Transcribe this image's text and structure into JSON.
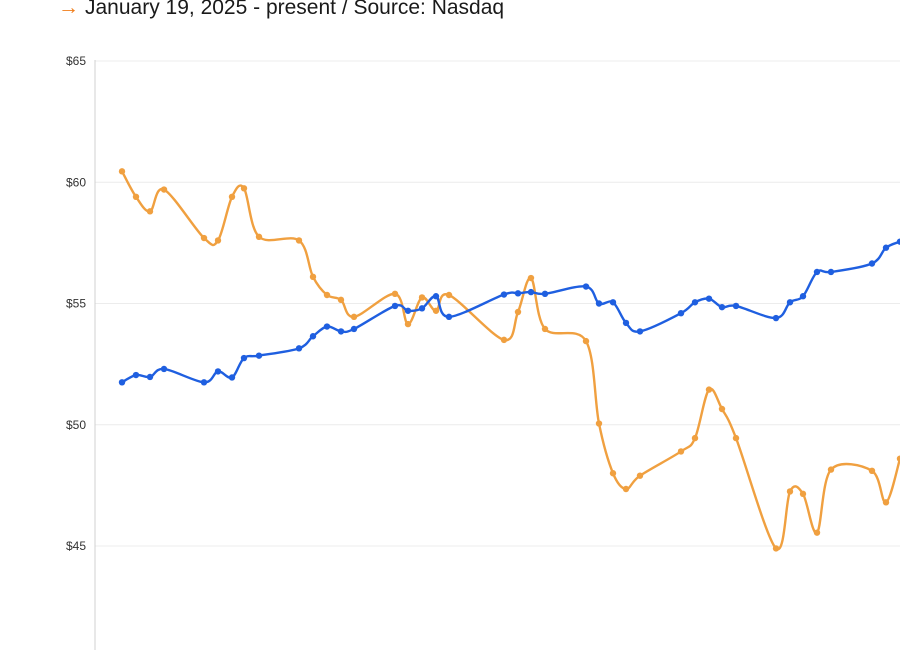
{
  "header": {
    "arrow": "→",
    "subtitle": "January 19, 2025 - present / Source: Nasdaq"
  },
  "chart_data": {
    "type": "line",
    "title": "",
    "xlabel": "",
    "ylabel": "",
    "ylim": [
      40.5,
      65
    ],
    "yticks": [
      45,
      50,
      55,
      60,
      65
    ],
    "ytick_labels": [
      "$45",
      "$50",
      "$55",
      "$60",
      "$65"
    ],
    "grid": true,
    "series": [
      {
        "color": "#1f5fe0",
        "x": [
          122,
          136,
          150,
          164,
          204,
          218,
          232,
          244,
          259,
          299,
          313,
          327,
          341,
          354,
          395,
          408,
          422,
          436,
          449,
          504,
          518,
          531,
          545,
          586,
          599,
          613,
          626,
          640,
          681,
          695,
          709,
          722,
          736,
          776,
          790,
          803,
          817,
          831,
          872,
          886,
          900
        ],
        "values": [
          51.75,
          52.05,
          51.97,
          52.3,
          51.75,
          52.2,
          51.95,
          52.75,
          52.85,
          53.15,
          53.65,
          54.05,
          53.85,
          53.95,
          54.9,
          54.7,
          54.8,
          55.3,
          54.45,
          55.37,
          55.42,
          55.47,
          55.4,
          55.7,
          55.0,
          55.05,
          54.2,
          53.85,
          54.6,
          55.05,
          55.2,
          54.85,
          54.9,
          54.4,
          55.05,
          55.3,
          56.3,
          56.3,
          56.65,
          57.3,
          57.55
        ]
      },
      {
        "color": "#f0a040",
        "x": [
          122,
          136,
          150,
          164,
          204,
          218,
          232,
          244,
          259,
          299,
          313,
          327,
          341,
          354,
          395,
          408,
          422,
          436,
          449,
          504,
          518,
          531,
          545,
          586,
          599,
          613,
          626,
          640,
          681,
          695,
          709,
          722,
          736,
          776,
          790,
          803,
          817,
          831,
          872,
          886,
          900
        ],
        "values": [
          60.45,
          59.4,
          58.8,
          59.7,
          57.7,
          57.6,
          59.4,
          59.75,
          57.75,
          57.6,
          56.1,
          55.35,
          55.15,
          54.45,
          55.4,
          54.15,
          55.25,
          54.7,
          55.35,
          53.5,
          54.65,
          56.05,
          53.95,
          53.45,
          50.05,
          48.0,
          47.35,
          47.9,
          48.9,
          49.45,
          51.45,
          50.65,
          49.45,
          44.9,
          47.25,
          47.15,
          45.55,
          48.15,
          48.1,
          46.8,
          48.6
        ]
      }
    ]
  }
}
